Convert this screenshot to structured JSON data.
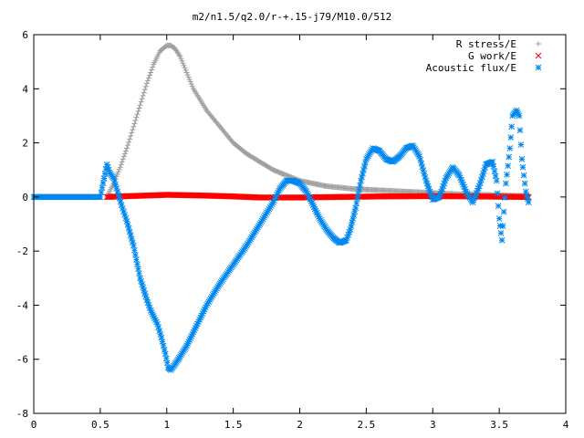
{
  "chart_data": {
    "type": "scatter",
    "title": "m2/n1.5/q2.0/r-+.15-j79/M10.0/512",
    "xlabel": "",
    "ylabel": "",
    "xlim": [
      0,
      4
    ],
    "ylim": [
      -8,
      6
    ],
    "x_ticks": [
      0,
      0.5,
      1,
      1.5,
      2,
      2.5,
      3,
      3.5,
      4
    ],
    "x_tick_labels": [
      "0",
      "0.5",
      "1",
      "1.5",
      "2",
      "2.5",
      "3",
      "3.5",
      "4"
    ],
    "y_ticks": [
      -8,
      -6,
      -4,
      -2,
      0,
      2,
      4,
      6
    ],
    "y_tick_labels": [
      "-8",
      "-6",
      "-4",
      "-2",
      "0",
      "2",
      "4",
      "6"
    ],
    "grid": false,
    "legend_position": "top-right",
    "series": [
      {
        "name": "R stress/E",
        "marker": "+",
        "color": "#a0a0a0",
        "x": [
          0.55,
          0.6,
          0.65,
          0.7,
          0.75,
          0.8,
          0.85,
          0.9,
          0.95,
          1.0,
          1.03,
          1.06,
          1.1,
          1.15,
          1.2,
          1.3,
          1.4,
          1.5,
          1.6,
          1.7,
          1.8,
          1.9,
          2.0,
          2.1,
          2.2,
          2.4,
          2.6,
          2.8,
          3.0,
          3.2,
          3.4,
          3.6,
          3.72
        ],
        "y": [
          0.0,
          0.5,
          1.1,
          1.8,
          2.6,
          3.4,
          4.2,
          4.9,
          5.4,
          5.6,
          5.6,
          5.5,
          5.2,
          4.6,
          4.0,
          3.2,
          2.6,
          2.0,
          1.6,
          1.3,
          1.0,
          0.8,
          0.6,
          0.5,
          0.4,
          0.3,
          0.25,
          0.2,
          0.15,
          0.1,
          0.08,
          0.05,
          0.04
        ]
      },
      {
        "name": "G work/E",
        "marker": "x",
        "color": "#ff0000",
        "x": [
          0.55,
          0.7,
          0.9,
          1.0,
          1.1,
          1.3,
          1.5,
          1.7,
          2.0,
          2.3,
          2.6,
          3.0,
          3.3,
          3.5,
          3.72
        ],
        "y": [
          0.0,
          0.03,
          0.06,
          0.08,
          0.07,
          0.05,
          0.02,
          -0.02,
          -0.02,
          0.0,
          0.02,
          0.03,
          0.02,
          0.01,
          0.0
        ]
      },
      {
        "name": "Acoustic flux/E",
        "marker": "*",
        "color": "#0088ee",
        "x": [
          0.0,
          0.1,
          0.2,
          0.3,
          0.4,
          0.5,
          0.55,
          0.57,
          0.6,
          0.63,
          0.66,
          0.7,
          0.75,
          0.8,
          0.85,
          0.88,
          0.9,
          0.93,
          0.96,
          0.99,
          1.01,
          1.03,
          1.06,
          1.1,
          1.15,
          1.2,
          1.3,
          1.4,
          1.5,
          1.6,
          1.7,
          1.8,
          1.85,
          1.9,
          1.95,
          2.0,
          2.05,
          2.1,
          2.15,
          2.2,
          2.25,
          2.3,
          2.35,
          2.38,
          2.42,
          2.46,
          2.5,
          2.55,
          2.6,
          2.65,
          2.7,
          2.75,
          2.8,
          2.85,
          2.9,
          2.95,
          3.0,
          3.05,
          3.1,
          3.15,
          3.2,
          3.25,
          3.3,
          3.35,
          3.4,
          3.45,
          3.48,
          3.5,
          3.52,
          3.55,
          3.58,
          3.6,
          3.63,
          3.65,
          3.67,
          3.7,
          3.72
        ],
        "y": [
          0.0,
          0.0,
          0.0,
          0.0,
          0.0,
          0.0,
          1.2,
          0.9,
          0.7,
          0.2,
          -0.3,
          -0.9,
          -1.8,
          -3.0,
          -3.8,
          -4.2,
          -4.4,
          -4.7,
          -5.2,
          -5.8,
          -6.3,
          -6.4,
          -6.2,
          -5.9,
          -5.5,
          -5.0,
          -4.0,
          -3.2,
          -2.5,
          -1.8,
          -1.0,
          -0.2,
          0.3,
          0.6,
          0.6,
          0.5,
          0.2,
          -0.3,
          -0.8,
          -1.2,
          -1.5,
          -1.7,
          -1.6,
          -1.2,
          -0.4,
          0.6,
          1.4,
          1.8,
          1.7,
          1.4,
          1.3,
          1.5,
          1.8,
          1.9,
          1.5,
          0.6,
          -0.1,
          0.0,
          0.7,
          1.1,
          0.8,
          0.2,
          -0.2,
          0.4,
          1.2,
          1.3,
          0.6,
          -0.8,
          -1.6,
          0.5,
          1.8,
          3.0,
          3.2,
          3.0,
          1.4,
          0.2,
          -0.2
        ]
      }
    ]
  }
}
